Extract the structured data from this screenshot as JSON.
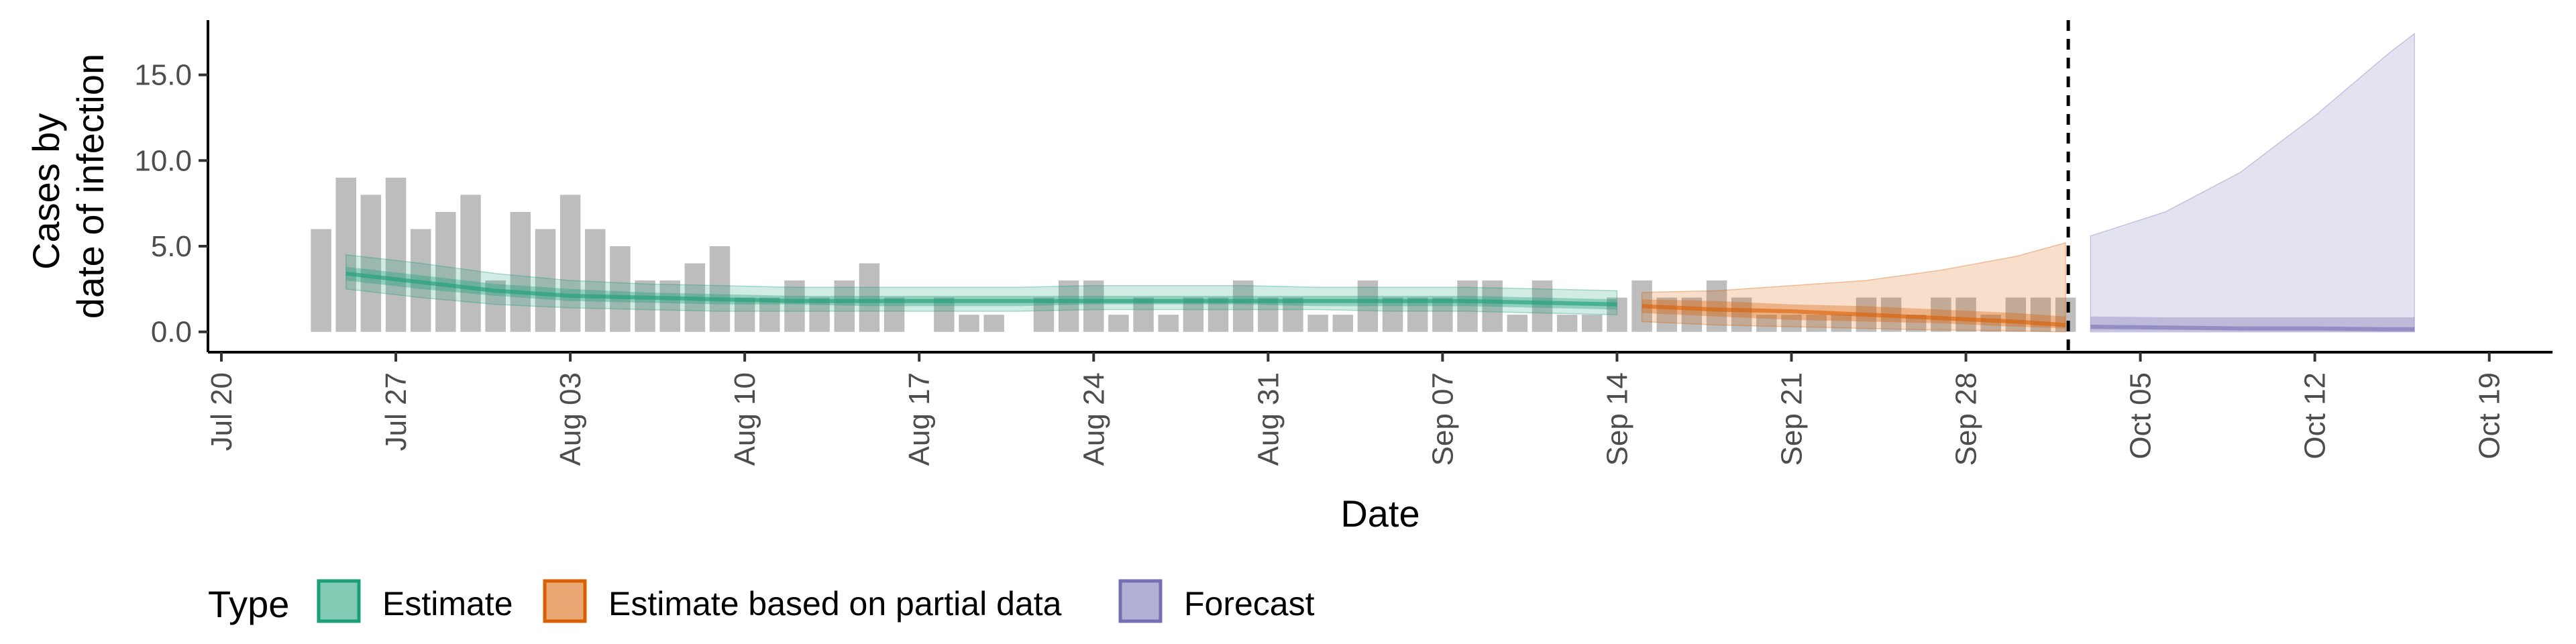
{
  "chart_data": {
    "type": "bar",
    "xlabel": "Date",
    "ylabel_lines": [
      "Cases by",
      "date of infection"
    ],
    "x_start": "2020-07-20",
    "ylim": [
      -0.6,
      18
    ],
    "grid": false,
    "x_ticks": [
      "Jul 20",
      "Jul 27",
      "Aug 03",
      "Aug 10",
      "Aug 17",
      "Aug 24",
      "Aug 31",
      "Sep 07",
      "Sep 14",
      "Sep 21",
      "Sep 28",
      "Oct 05",
      "Oct 12",
      "Oct 19"
    ],
    "y_ticks": [
      "0.0",
      "5.0",
      "10.0",
      "15.0"
    ],
    "y_tick_values": [
      0,
      5,
      10,
      15
    ],
    "forecast_cutoff": "2020-10-02",
    "bars": {
      "start": "2020-07-24",
      "values": [
        6,
        9,
        8,
        9,
        6,
        7,
        8,
        3,
        7,
        6,
        8,
        6,
        5,
        3,
        3,
        4,
        5,
        2,
        2,
        3,
        2,
        3,
        4,
        2,
        0,
        2,
        1,
        1,
        0,
        2,
        3,
        3,
        1,
        2,
        1,
        2,
        2,
        3,
        2,
        2,
        1,
        1,
        3,
        2,
        2,
        2,
        3,
        3,
        1,
        3,
        1,
        1,
        2,
        3,
        2,
        2,
        3,
        2,
        1,
        1,
        1,
        1,
        2,
        2,
        1,
        2,
        2,
        1,
        2,
        2,
        2
      ]
    },
    "series": [
      {
        "name": "Estimate",
        "color": "#1b9e77",
        "dates": [
          "2020-07-25",
          "2020-07-28",
          "2020-07-31",
          "2020-08-03",
          "2020-08-06",
          "2020-08-09",
          "2020-08-12",
          "2020-08-15",
          "2020-08-18",
          "2020-08-21",
          "2020-08-24",
          "2020-08-27",
          "2020-08-30",
          "2020-09-02",
          "2020-09-05",
          "2020-09-08",
          "2020-09-11",
          "2020-09-14"
        ],
        "median": [
          3.4,
          2.9,
          2.4,
          2.1,
          2.0,
          1.9,
          1.8,
          1.8,
          1.8,
          1.8,
          1.8,
          1.8,
          1.8,
          1.8,
          1.8,
          1.8,
          1.7,
          1.6
        ],
        "inner_lower": [
          3.0,
          2.5,
          2.1,
          1.8,
          1.7,
          1.6,
          1.6,
          1.5,
          1.5,
          1.5,
          1.6,
          1.6,
          1.6,
          1.5,
          1.5,
          1.5,
          1.4,
          1.3
        ],
        "inner_upper": [
          3.8,
          3.3,
          2.8,
          2.5,
          2.3,
          2.2,
          2.1,
          2.1,
          2.1,
          2.1,
          2.1,
          2.1,
          2.1,
          2.1,
          2.1,
          2.1,
          2.0,
          1.9
        ],
        "outer_lower": [
          2.5,
          2.0,
          1.6,
          1.4,
          1.3,
          1.2,
          1.2,
          1.2,
          1.2,
          1.2,
          1.3,
          1.3,
          1.3,
          1.3,
          1.2,
          1.2,
          1.1,
          1.0
        ],
        "outer_upper": [
          4.5,
          4.0,
          3.4,
          3.0,
          2.8,
          2.7,
          2.6,
          2.6,
          2.6,
          2.6,
          2.7,
          2.7,
          2.7,
          2.6,
          2.6,
          2.6,
          2.5,
          2.4
        ]
      },
      {
        "name": "Estimate based on partial data",
        "color": "#d95f02",
        "dates": [
          "2020-09-15",
          "2020-09-18",
          "2020-09-21",
          "2020-09-24",
          "2020-09-27",
          "2020-09-30",
          "2020-10-02"
        ],
        "median": [
          1.5,
          1.3,
          1.2,
          1.0,
          0.8,
          0.6,
          0.4
        ],
        "inner_lower": [
          1.1,
          0.9,
          0.7,
          0.6,
          0.5,
          0.3,
          0.2
        ],
        "inner_upper": [
          1.9,
          1.8,
          1.6,
          1.5,
          1.3,
          1.1,
          0.9
        ],
        "outer_lower": [
          0.6,
          0.4,
          0.3,
          0.2,
          0.1,
          0.05,
          0.0
        ],
        "outer_upper": [
          2.3,
          2.4,
          2.7,
          3.0,
          3.6,
          4.4,
          5.2
        ]
      },
      {
        "name": "Forecast",
        "color": "#7570b3",
        "dates": [
          "2020-10-03",
          "2020-10-06",
          "2020-10-09",
          "2020-10-12",
          "2020-10-15",
          "2020-10-16"
        ],
        "median": [
          0.3,
          0.25,
          0.2,
          0.2,
          0.15,
          0.15
        ],
        "inner_lower": [
          0.05,
          0.05,
          0.04,
          0.03,
          0.02,
          0.02
        ],
        "inner_upper": [
          0.9,
          0.85,
          0.85,
          0.85,
          0.85,
          0.85
        ],
        "outer_lower": [
          0.0,
          0.0,
          0.0,
          0.0,
          0.0,
          0.0
        ],
        "outer_upper": [
          5.6,
          7.0,
          9.3,
          12.6,
          16.3,
          17.4
        ]
      }
    ],
    "legend": {
      "title": "Type",
      "position": "bottom-left",
      "items": [
        {
          "label": "Estimate",
          "color": "#1b9e77"
        },
        {
          "label": "Estimate based on partial data",
          "color": "#d95f02"
        },
        {
          "label": "Forecast",
          "color": "#7570b3"
        }
      ]
    }
  }
}
